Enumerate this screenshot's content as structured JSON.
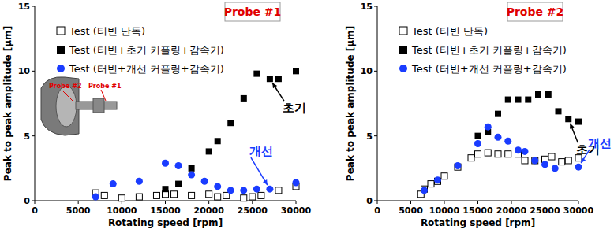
{
  "chart_data": [
    {
      "type": "scatter",
      "title": "Probe #1",
      "x_label": "Rotating speed [rpm]",
      "y_label": "Peak to peak amplitude [μm]",
      "xlim": [
        0,
        30000
      ],
      "xticks": [
        0,
        5000,
        10000,
        15000,
        20000,
        25000,
        30000
      ],
      "ylim": [
        0,
        15
      ],
      "yticks": [
        0,
        5,
        10,
        15
      ],
      "grid": false,
      "legend": "upper left",
      "inset_labels": [
        "Probe #2",
        "Probe #1"
      ],
      "annotations": [
        "초기",
        "개선"
      ],
      "series": [
        {
          "name": "Test (터빈 단독)",
          "color": "#000000",
          "marker": "square-open",
          "x": [
            7000,
            8000,
            10000,
            12000,
            14000,
            15000,
            16000,
            18000,
            20000,
            21000,
            22000,
            24000,
            25000,
            26000,
            28000,
            30000
          ],
          "values": [
            0.6,
            0.4,
            0.2,
            0.3,
            0.4,
            0.5,
            0.5,
            0.4,
            0.5,
            0.3,
            0.4,
            0.2,
            0.3,
            0.4,
            0.8,
            1.1
          ]
        },
        {
          "name": "Test (터빈+초기 커플링+감속기)",
          "color": "#000000",
          "marker": "square",
          "x": [
            15000,
            16500,
            18000,
            20000,
            21000,
            22500,
            24000,
            25500,
            27000,
            28000,
            30000
          ],
          "values": [
            0.9,
            1.3,
            2.5,
            3.8,
            4.6,
            6.0,
            7.9,
            9.8,
            9.4,
            9.4,
            10.0
          ]
        },
        {
          "name": "Test (터빈+개선 커플링+감속기)",
          "color": "#1a3cff",
          "marker": "circle",
          "x": [
            7000,
            9000,
            12000,
            15000,
            16500,
            18000,
            19500,
            21000,
            22500,
            24000,
            25500,
            27000,
            30000
          ],
          "values": [
            0.3,
            1.3,
            1.5,
            2.9,
            2.7,
            2.0,
            1.5,
            1.1,
            0.8,
            0.8,
            0.9,
            0.9,
            1.4
          ]
        }
      ]
    },
    {
      "type": "scatter",
      "title": "Probe #2",
      "x_label": "Rotating speed [rpm]",
      "y_label": "Peak to peak amplitude [μm]",
      "xlim": [
        0,
        30000
      ],
      "xticks": [
        0,
        5000,
        10000,
        15000,
        20000,
        25000,
        30000
      ],
      "ylim": [
        0,
        15
      ],
      "yticks": [
        0,
        5,
        10,
        15
      ],
      "grid": false,
      "legend": "upper left",
      "annotations": [
        "초기",
        "개선"
      ],
      "series": [
        {
          "name": "Test (터빈 단독)",
          "color": "#000000",
          "marker": "square-open",
          "x": [
            6500,
            7000,
            8000,
            9000,
            10000,
            12000,
            14000,
            15000,
            16500,
            18000,
            19500,
            21000,
            22000,
            23500,
            25000,
            26000,
            27500,
            28500,
            30000
          ],
          "values": [
            0.5,
            0.9,
            1.3,
            1.5,
            1.9,
            2.6,
            3.3,
            3.6,
            3.7,
            3.6,
            3.6,
            3.6,
            3.1,
            3.1,
            3.2,
            3.4,
            3.0,
            3.1,
            3.3
          ]
        },
        {
          "name": "Test (터빈+초기 커플링+감속기)",
          "color": "#000000",
          "marker": "square",
          "x": [
            15000,
            16500,
            18000,
            19500,
            21000,
            22500,
            24000,
            25500,
            27000,
            28500,
            30000
          ],
          "values": [
            5.0,
            5.3,
            6.7,
            7.8,
            7.8,
            7.8,
            8.2,
            8.2,
            6.9,
            6.3,
            6.1
          ]
        },
        {
          "name": "Test (터빈+개선 커플링+감속기)",
          "color": "#1a3cff",
          "marker": "circle",
          "x": [
            7000,
            9000,
            12000,
            15000,
            16500,
            18000,
            19500,
            21000,
            22000,
            23500,
            25000,
            26500,
            30000
          ],
          "values": [
            0.8,
            1.6,
            2.7,
            4.4,
            5.7,
            4.9,
            4.6,
            3.9,
            3.8,
            3.1,
            2.8,
            2.5,
            2.6
          ]
        }
      ]
    }
  ]
}
